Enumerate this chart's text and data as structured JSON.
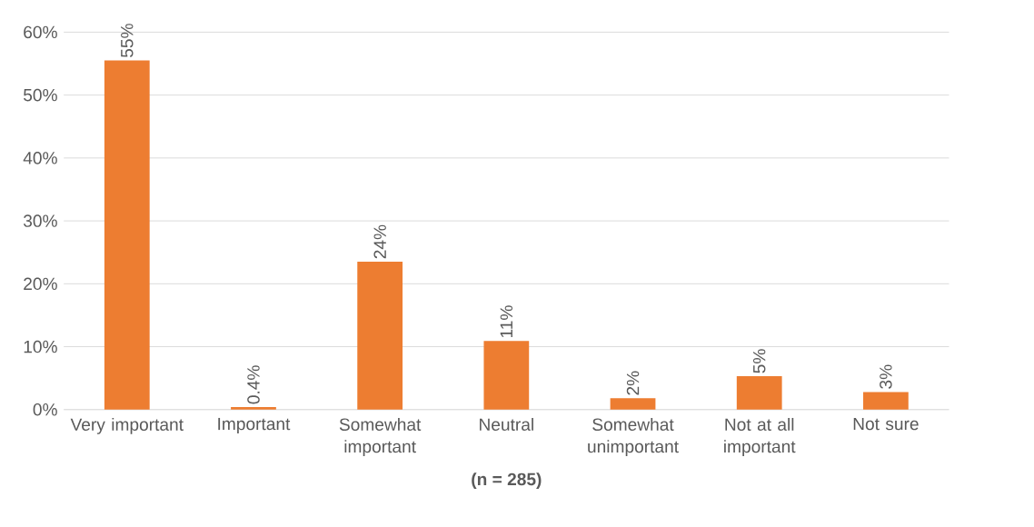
{
  "chart_data": {
    "type": "bar",
    "xlabel": "**(n = 285)**",
    "categories": [
      "Very important",
      "Important",
      "Somewhat important",
      "Neutral",
      "Somewhat unimportant",
      "Not at all important",
      "Not sure"
    ],
    "values": [
      55.5,
      0.4,
      23.5,
      10.9,
      1.8,
      5.3,
      2.8
    ],
    "value_labels": [
      "55%",
      "0.4%",
      "24%",
      "11%",
      "2%",
      "5%",
      "3%"
    ],
    "color": "#ed7d31",
    "ylim": [
      0,
      60
    ],
    "yticks": [
      {
        "value": 0,
        "label": "0%"
      },
      {
        "value": 10,
        "label": "10%"
      },
      {
        "value": 20,
        "label": "20%"
      },
      {
        "value": 30,
        "label": "30%"
      },
      {
        "value": 40,
        "label": "40%"
      },
      {
        "value": 50,
        "label": "50%"
      },
      {
        "value": 60,
        "label": "60%"
      }
    ],
    "grid": "y"
  }
}
